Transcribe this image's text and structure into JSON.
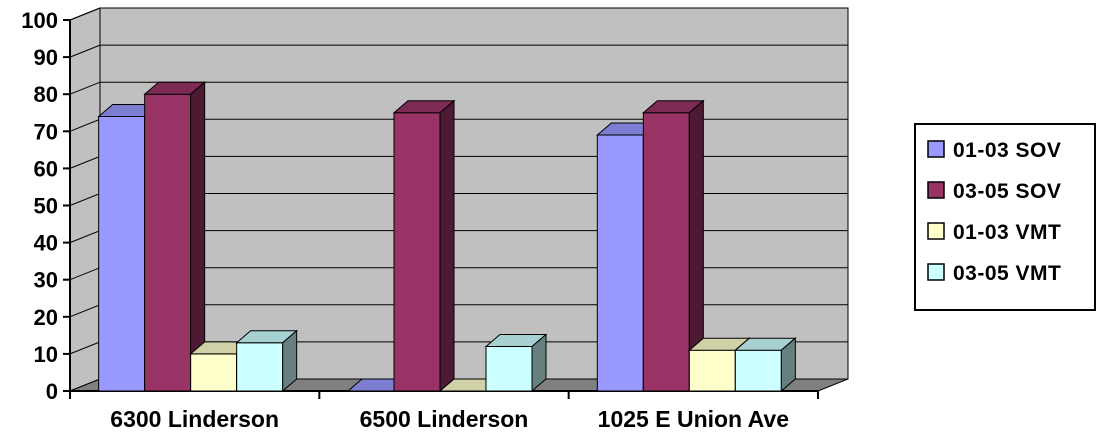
{
  "chart_data": {
    "type": "bar",
    "categories": [
      "6300 Linderson",
      "6500 Linderson",
      "1025 E Union Ave"
    ],
    "series": [
      {
        "name": "01-03 SOV",
        "values": [
          74,
          0,
          69
        ],
        "color": "#9999ff"
      },
      {
        "name": "03-05 SOV",
        "values": [
          80,
          75,
          75
        ],
        "color": "#993366"
      },
      {
        "name": "01-03 VMT",
        "values": [
          10,
          0,
          11
        ],
        "color": "#ffffcc"
      },
      {
        "name": "03-05 VMT",
        "values": [
          13,
          12,
          11
        ],
        "color": "#ccffff"
      }
    ],
    "yticks": [
      "0",
      "10",
      "20",
      "30",
      "40",
      "50",
      "60",
      "70",
      "80",
      "90",
      "100"
    ],
    "ylim": [
      0,
      100
    ],
    "grid": true,
    "legend_position": "right",
    "plot_background": "#c0c0c0",
    "wall_side": "#808080",
    "title": "",
    "xlabel": "",
    "ylabel": ""
  }
}
